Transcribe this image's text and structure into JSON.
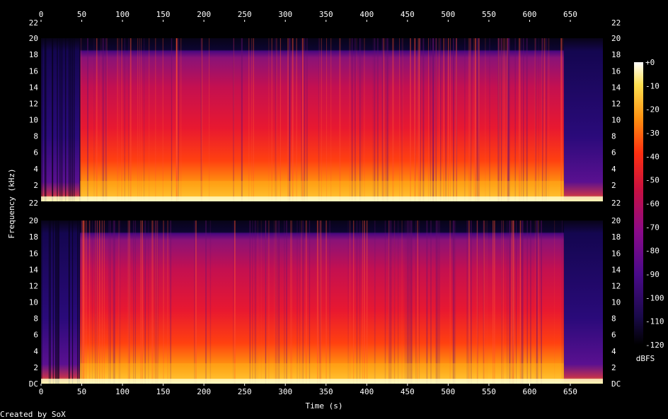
{
  "chart_data": {
    "type": "heatmap",
    "title": "",
    "xlabel": "Time (s)",
    "ylabel": "Frequency (kHz)",
    "xlim": [
      0,
      690
    ],
    "ylim_khz": [
      0,
      22
    ],
    "x_ticks": [
      0,
      50,
      100,
      150,
      200,
      250,
      300,
      350,
      400,
      450,
      500,
      550,
      600,
      650
    ],
    "y_ticks_top": [
      "2",
      "4",
      "6",
      "8",
      "10",
      "12",
      "14",
      "16",
      "18",
      "20",
      "22"
    ],
    "y_ticks_bottom": [
      "DC",
      "2",
      "4",
      "6",
      "8",
      "10",
      "12",
      "14",
      "16",
      "18",
      "20"
    ],
    "colorbar": {
      "label": "dBFS",
      "ticks": [
        "+0",
        "-10",
        "-20",
        "-30",
        "-40",
        "-50",
        "-60",
        "-70",
        "-80",
        "-90",
        "-100",
        "-110",
        "-120"
      ],
      "range_db": [
        -120,
        0
      ]
    },
    "channels": 2,
    "audio_start_s": 48,
    "audio_end_s": 642,
    "upper_cutoff_khz": 20,
    "footer": "Created by SoX"
  }
}
